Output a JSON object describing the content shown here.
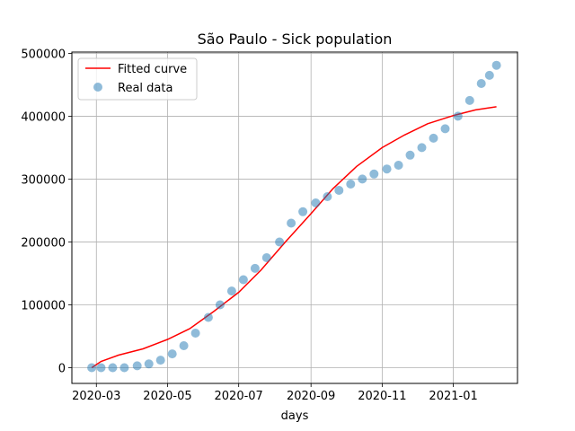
{
  "chart_data": {
    "type": "scatter",
    "title": "São Paulo - Sick population",
    "xlabel": "days",
    "ylabel": "",
    "x_range": [
      "2020-02-09",
      "2021-02-25"
    ],
    "ylim": [
      -25000,
      502000
    ],
    "grid": true,
    "legend_position": "top-left",
    "x_ticks": [
      {
        "date": "2020-03-01",
        "label": "2020-03"
      },
      {
        "date": "2020-05-01",
        "label": "2020-05"
      },
      {
        "date": "2020-07-01",
        "label": "2020-07"
      },
      {
        "date": "2020-09-01",
        "label": "2020-09"
      },
      {
        "date": "2020-11-01",
        "label": "2020-11"
      },
      {
        "date": "2021-01-01",
        "label": "2021-01"
      }
    ],
    "y_ticks": [
      0,
      100000,
      200000,
      300000,
      400000,
      500000
    ],
    "series": [
      {
        "name": "Fitted curve",
        "kind": "line",
        "color": "#ff0000",
        "points": [
          [
            "2020-02-26",
            0
          ],
          [
            "2020-03-05",
            10000
          ],
          [
            "2020-03-20",
            20000
          ],
          [
            "2020-04-10",
            30000
          ],
          [
            "2020-05-01",
            45000
          ],
          [
            "2020-05-20",
            62000
          ],
          [
            "2020-06-10",
            90000
          ],
          [
            "2020-07-01",
            120000
          ],
          [
            "2020-07-20",
            155000
          ],
          [
            "2020-08-10",
            200000
          ],
          [
            "2020-09-01",
            245000
          ],
          [
            "2020-09-20",
            285000
          ],
          [
            "2020-10-10",
            320000
          ],
          [
            "2020-11-01",
            350000
          ],
          [
            "2020-11-20",
            370000
          ],
          [
            "2020-12-10",
            388000
          ],
          [
            "2021-01-01",
            401000
          ],
          [
            "2021-01-20",
            410000
          ],
          [
            "2021-02-07",
            415000
          ]
        ]
      },
      {
        "name": "Real data",
        "kind": "scatter",
        "color": "#1f77b4",
        "points": [
          [
            "2020-02-26",
            0
          ],
          [
            "2020-03-05",
            0
          ],
          [
            "2020-03-15",
            0
          ],
          [
            "2020-03-25",
            0
          ],
          [
            "2020-04-05",
            3000
          ],
          [
            "2020-04-15",
            6000
          ],
          [
            "2020-04-25",
            12000
          ],
          [
            "2020-05-05",
            22000
          ],
          [
            "2020-05-15",
            35000
          ],
          [
            "2020-05-25",
            55000
          ],
          [
            "2020-06-05",
            80000
          ],
          [
            "2020-06-15",
            100000
          ],
          [
            "2020-06-25",
            122000
          ],
          [
            "2020-07-05",
            140000
          ],
          [
            "2020-07-15",
            158000
          ],
          [
            "2020-07-25",
            175000
          ],
          [
            "2020-08-05",
            200000
          ],
          [
            "2020-08-15",
            230000
          ],
          [
            "2020-08-25",
            248000
          ],
          [
            "2020-09-05",
            262000
          ],
          [
            "2020-09-15",
            272000
          ],
          [
            "2020-09-25",
            282000
          ],
          [
            "2020-10-05",
            292000
          ],
          [
            "2020-10-15",
            300000
          ],
          [
            "2020-10-25",
            308000
          ],
          [
            "2020-11-05",
            316000
          ],
          [
            "2020-11-15",
            322000
          ],
          [
            "2020-11-25",
            338000
          ],
          [
            "2020-12-05",
            350000
          ],
          [
            "2020-12-15",
            365000
          ],
          [
            "2020-12-25",
            380000
          ],
          [
            "2021-01-05",
            400000
          ],
          [
            "2021-01-15",
            425000
          ],
          [
            "2021-01-25",
            452000
          ],
          [
            "2021-02-01",
            465000
          ],
          [
            "2021-02-07",
            481000
          ]
        ]
      }
    ]
  }
}
